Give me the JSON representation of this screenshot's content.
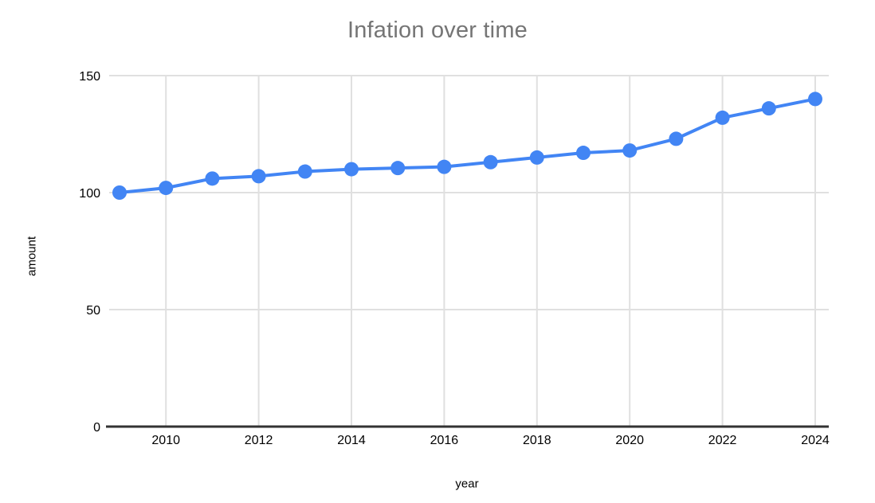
{
  "page": {
    "background": "#ffffff"
  },
  "chart_data": {
    "type": "line",
    "title": "Infation over time",
    "xlabel": "year",
    "ylabel": "amount",
    "x": [
      2009,
      2010,
      2011,
      2012,
      2013,
      2014,
      2015,
      2016,
      2017,
      2018,
      2019,
      2020,
      2021,
      2022,
      2023,
      2024
    ],
    "series": [
      {
        "name": "amount",
        "color": "#4285f4",
        "values": [
          100,
          102,
          106,
          107,
          109,
          110,
          110.5,
          111,
          113,
          115,
          117,
          118,
          123,
          132,
          136,
          140
        ]
      }
    ],
    "ylim": [
      0,
      150
    ],
    "yticks": [
      0,
      50,
      100,
      150
    ],
    "xticks": [
      2010,
      2012,
      2014,
      2016,
      2018,
      2020,
      2022,
      2024
    ],
    "grid": true,
    "legend_position": "none",
    "marker": "circle"
  },
  "colors": {
    "line": "#4285f4",
    "grid": "#e0e0e0",
    "axis": "#333333",
    "title": "#757575",
    "tick_label": "#000000"
  }
}
